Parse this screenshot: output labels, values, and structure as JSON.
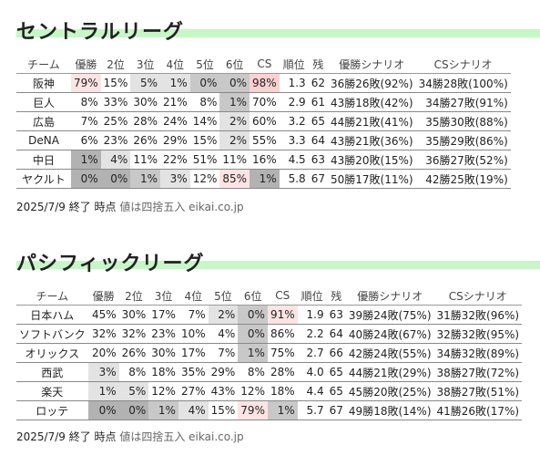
{
  "central": {
    "title": "セントラルリーグ",
    "headers": [
      "チーム",
      "優勝",
      "2位",
      "3位",
      "4位",
      "5位",
      "6位",
      "CS",
      "順位",
      "残",
      "優勝シナリオ",
      "CSシナリオ"
    ],
    "rows": [
      {
        "team": "阪神",
        "cells": [
          "79%",
          "15%",
          "5%",
          "1%",
          "0%",
          "0%",
          "98%",
          "1.3",
          "62",
          "36勝26敗(92%)",
          "34勝28敗(100%)"
        ],
        "shades": [
          "p1",
          "",
          "g1",
          "g1",
          "g2",
          "g2",
          "p2",
          "",
          "",
          "",
          ""
        ]
      },
      {
        "team": "巨人",
        "cells": [
          "8%",
          "33%",
          "30%",
          "21%",
          "8%",
          "1%",
          "70%",
          "2.9",
          "61",
          "43勝18敗(42%)",
          "34勝27敗(91%)"
        ],
        "shades": [
          "",
          "",
          "",
          "",
          "",
          "g2",
          "",
          "",
          "",
          "",
          ""
        ]
      },
      {
        "team": "広島",
        "cells": [
          "7%",
          "25%",
          "28%",
          "24%",
          "14%",
          "2%",
          "60%",
          "3.2",
          "65",
          "44勝21敗(41%)",
          "35勝30敗(88%)"
        ],
        "shades": [
          "",
          "",
          "",
          "",
          "",
          "g1",
          "",
          "",
          "",
          "",
          ""
        ]
      },
      {
        "team": "DeNA",
        "cells": [
          "6%",
          "23%",
          "26%",
          "29%",
          "15%",
          "2%",
          "55%",
          "3.3",
          "64",
          "43勝21敗(36%)",
          "35勝29敗(86%)"
        ],
        "shades": [
          "",
          "",
          "",
          "",
          "",
          "g1",
          "",
          "",
          "",
          "",
          ""
        ]
      },
      {
        "team": "中日",
        "cells": [
          "1%",
          "4%",
          "11%",
          "22%",
          "51%",
          "11%",
          "16%",
          "4.5",
          "63",
          "43勝20敗(15%)",
          "36勝27敗(52%)"
        ],
        "shades": [
          "g3",
          "g1",
          "",
          "",
          "",
          "",
          "",
          "",
          "",
          "",
          ""
        ]
      },
      {
        "team": "ヤクルト",
        "cells": [
          "0%",
          "0%",
          "1%",
          "3%",
          "12%",
          "85%",
          "1%",
          "5.8",
          "67",
          "50勝17敗(11%)",
          "42勝25敗(19%)"
        ],
        "shades": [
          "g3",
          "g3",
          "g2",
          "g1",
          "",
          "p1",
          "g3",
          "",
          "",
          "",
          ""
        ]
      }
    ],
    "footer_main": "2025/7/9 終了 時点",
    "footer_note": "値は四捨五入 eikai.co.jp"
  },
  "pacific": {
    "title": "パシフィックリーグ",
    "headers": [
      "チーム",
      "優勝",
      "2位",
      "3位",
      "4位",
      "5位",
      "6位",
      "CS",
      "順位",
      "残",
      "優勝シナリオ",
      "CSシナリオ"
    ],
    "rows": [
      {
        "team": "日本ハム",
        "cells": [
          "45%",
          "30%",
          "17%",
          "7%",
          "2%",
          "0%",
          "91%",
          "1.9",
          "63",
          "39勝24敗(75%)",
          "31勝32敗(96%)"
        ],
        "shades": [
          "",
          "",
          "",
          "",
          "g1",
          "g2",
          "p1",
          "",
          "",
          "",
          ""
        ]
      },
      {
        "team": "ソフトバンク",
        "cells": [
          "32%",
          "32%",
          "23%",
          "10%",
          "4%",
          "0%",
          "86%",
          "2.2",
          "64",
          "40勝24敗(67%)",
          "32勝32敗(95%)"
        ],
        "shades": [
          "",
          "",
          "",
          "",
          "",
          "g2",
          "",
          "",
          "",
          "",
          ""
        ]
      },
      {
        "team": "オリックス",
        "cells": [
          "20%",
          "26%",
          "30%",
          "17%",
          "7%",
          "1%",
          "75%",
          "2.7",
          "66",
          "42勝24敗(55%)",
          "34勝32敗(89%)"
        ],
        "shades": [
          "",
          "",
          "",
          "",
          "",
          "g2",
          "",
          "",
          "",
          "",
          ""
        ]
      },
      {
        "team": "西武",
        "cells": [
          "3%",
          "8%",
          "18%",
          "35%",
          "29%",
          "8%",
          "28%",
          "4.0",
          "65",
          "44勝21敗(29%)",
          "38勝27敗(72%)"
        ],
        "shades": [
          "g1",
          "",
          "",
          "",
          "",
          "",
          "",
          "",
          "",
          "",
          ""
        ]
      },
      {
        "team": "楽天",
        "cells": [
          "1%",
          "5%",
          "12%",
          "27%",
          "43%",
          "12%",
          "18%",
          "4.4",
          "65",
          "45勝20敗(25%)",
          "38勝27敗(51%)"
        ],
        "shades": [
          "g1",
          "g1",
          "",
          "",
          "",
          "",
          "",
          "",
          "",
          "",
          ""
        ]
      },
      {
        "team": "ロッテ",
        "cells": [
          "0%",
          "0%",
          "1%",
          "4%",
          "15%",
          "79%",
          "1%",
          "5.7",
          "67",
          "49勝18敗(14%)",
          "41勝26敗(17%)"
        ],
        "shades": [
          "g3",
          "g3",
          "g2",
          "g1",
          "",
          "p1",
          "g2",
          "",
          "",
          "",
          ""
        ]
      }
    ],
    "footer_main": "2025/7/9 終了 時点",
    "footer_note": "値は四捨五入 eikai.co.jp"
  }
}
